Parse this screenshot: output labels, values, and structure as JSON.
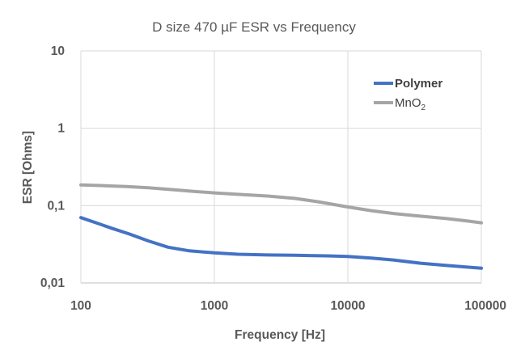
{
  "chart_data": {
    "type": "line",
    "title": "D size  470 µF ESR vs Frequency",
    "xlabel": "Frequency [Hz]",
    "ylabel": "ESR [Ohms]",
    "x_scale": "log",
    "y_scale": "log",
    "xlim": [
      100,
      100000
    ],
    "ylim": [
      0.01,
      10
    ],
    "x_ticks": [
      "100",
      "1000",
      "10000",
      "100000"
    ],
    "y_ticks": [
      "0,01",
      "0,1",
      "1",
      "10"
    ],
    "grid": true,
    "legend_position": "top-right",
    "series": [
      {
        "name": "Polymer",
        "color": "#4472C4",
        "x": [
          100,
          130,
          170,
          230,
          320,
          450,
          650,
          1000,
          1500,
          2500,
          4000,
          7000,
          10000,
          15000,
          22000,
          35000,
          55000,
          80000,
          100000
        ],
        "y": [
          0.07,
          0.06,
          0.051,
          0.043,
          0.035,
          0.029,
          0.026,
          0.0245,
          0.0235,
          0.023,
          0.0228,
          0.0224,
          0.022,
          0.021,
          0.0198,
          0.018,
          0.0168,
          0.016,
          0.0155
        ]
      },
      {
        "name": "MnO₂",
        "label_main": "MnO",
        "label_sub": "2",
        "color": "#A5A5A5",
        "x": [
          100,
          150,
          220,
          320,
          500,
          700,
          1000,
          1500,
          2500,
          4000,
          6000,
          10000,
          15000,
          22000,
          35000,
          55000,
          80000,
          100000
        ],
        "y": [
          0.185,
          0.181,
          0.176,
          0.17,
          0.16,
          0.153,
          0.146,
          0.14,
          0.133,
          0.124,
          0.112,
          0.096,
          0.086,
          0.079,
          0.073,
          0.068,
          0.063,
          0.06
        ]
      }
    ]
  }
}
